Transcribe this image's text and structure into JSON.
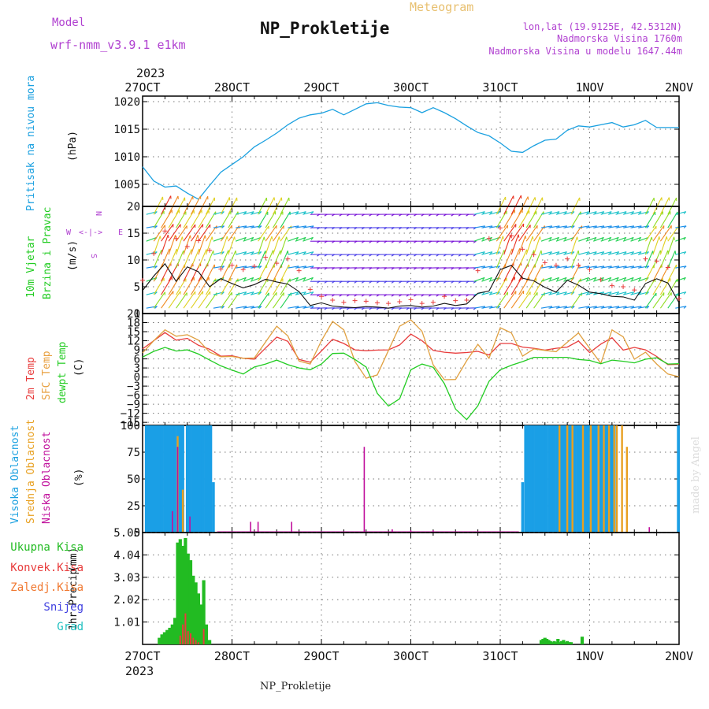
{
  "header": {
    "model_label": "Model",
    "model_value": "wrf-nmm_v3.9.1  e1km",
    "title": "NP_Prokletije",
    "subtitle": "Meteogram",
    "location": "lon,lat (19.9125E, 42.5312N)",
    "elevation": "Nadmorska Visina 1760m",
    "model_elevation": "Nadmorska Visina u modelu 1647.44m",
    "year_top": "2023",
    "year_bottom": "2023",
    "footer": "NP_Prokletije",
    "credit": "made by Angel"
  },
  "colors": {
    "pressure": "#1aa0e0",
    "temp2m": "#e83c3c",
    "sfc": "#e0a040",
    "dewpt": "#22cc22",
    "high_cloud": "#1a9fe6",
    "mid_cloud": "#e8a020",
    "low_cloud": "#c0109c",
    "precip_total": "#22bb22",
    "precip_conv": "#e83c3c",
    "precip_frz": "#f07830",
    "precip_snow": "#4040e0",
    "precip_hail": "#20c0c0",
    "purple": "#b040d0"
  },
  "time_axis": {
    "labels": [
      "27OCT",
      "28OCT",
      "29OCT",
      "30OCT",
      "31OCT",
      "1NOV",
      "2NOV"
    ]
  },
  "chart_data": [
    {
      "type": "line",
      "ylabel": "Pritisak na nivou mora",
      "unit": "(hPa)",
      "ylim": [
        1001,
        1021
      ],
      "yticks": [
        1005,
        1010,
        1015,
        1020
      ],
      "grid": true,
      "x_hours": [
        0,
        3,
        6,
        9,
        12,
        15,
        18,
        21,
        24,
        27,
        30,
        33,
        36,
        39,
        42,
        45,
        48,
        51,
        54,
        57,
        60,
        63,
        66,
        69,
        72,
        75,
        78,
        81,
        84,
        87,
        90,
        93,
        96,
        99,
        102,
        105,
        108,
        111,
        114,
        117,
        120,
        123,
        126,
        129,
        132,
        135,
        138,
        141,
        144
      ],
      "series": [
        {
          "values": [
            1008.2,
            1005.6,
            1004.5,
            1004.7,
            1003.4,
            1002.3,
            1004.8,
            1007.2,
            1008.6,
            1010.0,
            1011.8,
            1013.0,
            1014.3,
            1015.8,
            1017.0,
            1017.6,
            1017.9,
            1018.6,
            1017.6,
            1018.6,
            1019.6,
            1019.8,
            1019.3,
            1019.0,
            1018.9,
            1018.0,
            1018.9,
            1018.0,
            1016.9,
            1015.6,
            1014.4,
            1013.8,
            1012.5,
            1011.0,
            1010.8,
            1012.0,
            1013.0,
            1013.2,
            1014.8,
            1015.6,
            1015.4,
            1015.8,
            1016.2,
            1015.4,
            1015.8,
            1016.6,
            1015.3,
            1015.3,
            1015.3
          ]
        }
      ]
    },
    {
      "type": "line",
      "ylabel": "10m Vjetar Brzina i Pravac",
      "unit": "(m/s)",
      "ylim": [
        0,
        20
      ],
      "yticks": [
        0,
        5,
        10,
        15,
        20
      ],
      "grid": true,
      "compass": {
        "n": "N",
        "s": "S",
        "e": "E",
        "w": "W"
      },
      "x_hours": [
        0,
        3,
        6,
        9,
        12,
        15,
        18,
        21,
        24,
        27,
        30,
        33,
        36,
        39,
        42,
        45,
        48,
        51,
        54,
        57,
        60,
        63,
        66,
        69,
        72,
        75,
        78,
        81,
        84,
        87,
        90,
        93,
        96,
        99,
        102,
        105,
        108,
        111,
        114,
        117,
        120,
        123,
        126,
        129,
        132,
        135,
        138,
        141,
        144
      ],
      "series": [
        {
          "name": "speed",
          "values": [
            4.3,
            7.0,
            9.3,
            6.0,
            8.7,
            7.8,
            5.0,
            6.5,
            5.6,
            4.8,
            5.4,
            6.4,
            5.9,
            5.5,
            4.1,
            1.5,
            2.0,
            1.4,
            1.2,
            1.1,
            1.3,
            1.2,
            1.0,
            1.4,
            1.5,
            1.2,
            1.4,
            1.9,
            1.5,
            1.8,
            3.8,
            4.2,
            8.2,
            9.0,
            6.6,
            6.1,
            4.9,
            4.0,
            6.2,
            5.3,
            4.0,
            3.7,
            3.2,
            3.1,
            2.5,
            5.6,
            6.5,
            5.7,
            2.0
          ]
        },
        {
          "name": "gust",
          "values": [
            6.2,
            11.2,
            15.4,
            14.0,
            12.5,
            13.6,
            11.8,
            8.3,
            9.0,
            8.2,
            8.8,
            10.5,
            9.4,
            10.2,
            8.0,
            4.5,
            3.2,
            2.5,
            2.1,
            2.4,
            2.3,
            2.0,
            1.9,
            2.2,
            2.6,
            1.9,
            2.1,
            3.2,
            2.4,
            2.5,
            8.0,
            14.0,
            16.0,
            14.5,
            12.0,
            11.0,
            9.5,
            9.0,
            10.2,
            9.0,
            8.2,
            6.3,
            5.2,
            5.0,
            4.4,
            10.2,
            9.8,
            8.6,
            2.8
          ]
        }
      ]
    },
    {
      "type": "line",
      "ylabel": "2m Temp / SFC Temp / dewpt Temp",
      "series_labels": [
        "2m Temp",
        "SFC Temp",
        "dewpt Temp"
      ],
      "unit": "(C)",
      "ylim": [
        -16,
        21
      ],
      "yticks": [
        -15,
        -12,
        -9,
        -6,
        -3,
        0,
        3,
        6,
        9,
        12,
        15,
        18,
        21
      ],
      "grid": true,
      "x_hours": [
        0,
        3,
        6,
        9,
        12,
        15,
        18,
        21,
        24,
        27,
        30,
        33,
        36,
        39,
        42,
        45,
        48,
        51,
        54,
        57,
        60,
        63,
        66,
        69,
        72,
        75,
        78,
        81,
        84,
        87,
        90,
        93,
        96,
        99,
        102,
        105,
        108,
        111,
        114,
        117,
        120,
        123,
        126,
        129,
        132,
        135,
        138,
        141,
        144
      ],
      "series": [
        {
          "name": "2m Temp",
          "values": [
            9.3,
            12.0,
            14.7,
            12.2,
            12.8,
            10.5,
            9.2,
            6.9,
            7.0,
            6.2,
            5.9,
            9.6,
            13.2,
            11.8,
            5.8,
            4.9,
            8.6,
            12.5,
            11.1,
            9.0,
            8.7,
            8.9,
            9.0,
            10.6,
            14.2,
            12.0,
            8.8,
            8.2,
            7.9,
            8.1,
            8.5,
            7.3,
            11.1,
            11.1,
            9.9,
            9.5,
            8.9,
            9.5,
            9.9,
            11.9,
            8.1,
            10.9,
            13.0,
            8.9,
            9.8,
            9.0,
            6.8,
            4.1,
            4.2
          ]
        },
        {
          "name": "SFC Temp",
          "values": [
            8.0,
            12.0,
            15.6,
            13.5,
            14.0,
            12.2,
            8.2,
            6.7,
            6.8,
            6.2,
            6.3,
            11.6,
            16.8,
            13.6,
            5.3,
            4.3,
            12.0,
            18.4,
            15.6,
            5.1,
            -0.4,
            0.7,
            8.8,
            16.8,
            18.9,
            15.1,
            4.0,
            -0.9,
            -0.8,
            5.4,
            10.8,
            6.2,
            16.3,
            14.6,
            6.9,
            9.3,
            8.8,
            8.4,
            11.5,
            14.6,
            9.5,
            4.5,
            15.6,
            13.3,
            5.9,
            8.2,
            4.3,
            1.0,
            0.1
          ]
        },
        {
          "name": "dewpt Temp",
          "values": [
            6.6,
            8.5,
            9.8,
            8.6,
            9.0,
            7.6,
            5.6,
            3.7,
            2.3,
            1.0,
            3.3,
            4.3,
            5.6,
            4.1,
            3.0,
            2.4,
            4.3,
            7.8,
            7.9,
            5.8,
            3.3,
            -5.4,
            -9.6,
            -7.2,
            2.4,
            4.3,
            3.2,
            -2.2,
            -10.6,
            -14.1,
            -9.5,
            -1.4,
            2.4,
            3.9,
            5.1,
            6.5,
            6.5,
            6.5,
            6.5,
            5.8,
            5.5,
            4.4,
            5.6,
            5.2,
            4.7,
            5.9,
            6.4,
            4.3,
            4.4
          ]
        }
      ]
    },
    {
      "type": "bar",
      "ylabel": "Visoka Oblacnost / Srednja Oblacnost / Niska Oblacnost",
      "series_labels": [
        "Visoka Oblacnost",
        "Srednja Oblacnost",
        "Niska Oblacnost"
      ],
      "unit": "(%)",
      "ylim": [
        0,
        100
      ],
      "yticks": [
        0,
        25,
        50,
        75,
        100
      ],
      "grid": true,
      "x_hours": [
        1,
        1.7,
        2.4,
        3.1,
        3.8,
        4.5,
        5.2,
        5.9,
        6.6,
        7.3,
        8,
        8.7,
        9.4,
        10.1,
        10.8,
        12,
        12.7,
        13.4,
        14.1,
        14.8,
        15.5,
        16.2,
        16.9,
        17.6,
        18.3,
        19,
        20.5,
        22,
        23.5,
        25,
        29,
        31,
        40,
        41,
        52,
        59.5,
        60,
        67,
        72,
        78,
        102,
        102.8,
        103.5,
        104.2,
        104.9,
        105.6,
        106.3,
        107,
        107.7,
        108.4,
        109.1,
        109.8,
        110.5,
        111.2,
        111.9,
        112.6,
        113.3,
        114,
        114.7,
        115.4,
        116.1,
        116.8,
        117.5,
        118.2,
        118.9,
        119.6,
        120.3,
        121,
        121.7,
        122.4,
        123.1,
        123.8,
        124.5,
        125.2,
        125.9,
        126.6,
        127.3,
        128,
        128.7,
        129.4,
        130,
        136,
        143.8
      ],
      "series": [
        {
          "name": "Visoka Oblacnost",
          "values": [
            100,
            100,
            100,
            100,
            100,
            100,
            100,
            100,
            100,
            100,
            100,
            100,
            100,
            100,
            100,
            100,
            100,
            100,
            100,
            100,
            100,
            100,
            100,
            100,
            100,
            47,
            0,
            0,
            0,
            0,
            0,
            0,
            0,
            0,
            0,
            0,
            0,
            0,
            0,
            0,
            47,
            100,
            100,
            100,
            100,
            100,
            100,
            100,
            100,
            100,
            100,
            100,
            100,
            100,
            100,
            100,
            100,
            100,
            100,
            100,
            100,
            100,
            100,
            100,
            100,
            100,
            100,
            100,
            100,
            100,
            100,
            100,
            100,
            100,
            100,
            100,
            0,
            0,
            0,
            0,
            0,
            0,
            100
          ]
        },
        {
          "name": "Srednja Oblacnost",
          "values": [
            0,
            0,
            0,
            0,
            0,
            0,
            0,
            0,
            0,
            0,
            0,
            0,
            90,
            0,
            40,
            0,
            0,
            0,
            0,
            0,
            0,
            0,
            0,
            0,
            0,
            0,
            0,
            0,
            0,
            0,
            0,
            0,
            0,
            0,
            0,
            0,
            0,
            0,
            0,
            0,
            0,
            0,
            0,
            0,
            0,
            0,
            0,
            0,
            0,
            0,
            0,
            0,
            0,
            0,
            100,
            0,
            0,
            100,
            0,
            100,
            0,
            0,
            0,
            100,
            0,
            0,
            100,
            0,
            0,
            100,
            0,
            100,
            0,
            100,
            0,
            100,
            100,
            0,
            100,
            0,
            80,
            0,
            0
          ]
        },
        {
          "name": "Niska Oblacnost",
          "values": [
            0,
            0,
            0,
            0,
            0,
            0,
            0,
            0,
            0,
            0,
            20,
            0,
            80,
            0,
            0,
            0,
            15,
            0,
            0,
            0,
            0,
            0,
            0,
            0,
            0,
            0,
            0,
            0,
            0,
            0,
            10,
            10,
            10,
            0,
            1,
            80,
            0,
            3,
            2,
            2,
            0,
            0,
            0,
            0,
            0,
            0,
            0,
            0,
            0,
            0,
            0,
            0,
            0,
            0,
            0,
            0,
            0,
            0,
            0,
            0,
            0,
            0,
            0,
            0,
            0,
            0,
            0,
            0,
            0,
            0,
            0,
            0,
            0,
            0,
            0,
            0,
            0,
            0,
            0,
            0,
            0,
            5,
            0
          ]
        }
      ]
    },
    {
      "type": "bar",
      "ylabel": "1hr Precip",
      "unit": "(mm)",
      "ylim": [
        0,
        5.05
      ],
      "yticks": [
        1.01,
        2.02,
        3.03,
        4.04,
        5.05
      ],
      "grid": true,
      "legend": [
        "Ukupna Kisa",
        "Konvek.Kisa",
        "Zaledj.Kisa",
        "Snijeg",
        "Grad"
      ],
      "x_hours": [
        4.5,
        5.2,
        5.9,
        6.6,
        7.3,
        8,
        8.7,
        9.4,
        10.1,
        10.8,
        11.5,
        12.2,
        12.9,
        13.6,
        14.3,
        15,
        15.7,
        16.4,
        17.1,
        18,
        107,
        107.5,
        108,
        108.5,
        109,
        109.5,
        110,
        110.5,
        111,
        111.5,
        112,
        112.5,
        113,
        113.5,
        114,
        114.5,
        115,
        118
      ],
      "series": [
        {
          "name": "Ukupna Kisa",
          "values": [
            0.3,
            0.45,
            0.55,
            0.65,
            0.75,
            0.9,
            1.2,
            4.6,
            4.75,
            4.45,
            4.8,
            4.1,
            3.8,
            3.1,
            2.8,
            2.3,
            1.8,
            2.9,
            0.9,
            0.2,
            0.2,
            0.25,
            0.3,
            0.25,
            0.2,
            0.15,
            0.1,
            0.15,
            0.1,
            0.25,
            0.1,
            0.15,
            0.2,
            0.1,
            0.15,
            0.1,
            0.1,
            0.35
          ]
        },
        {
          "name": "Konvek.Kisa",
          "values": [
            0,
            0,
            0,
            0,
            0,
            0,
            0,
            0,
            0.4,
            0.9,
            1.4,
            0.6,
            0.5,
            0.3,
            0.2,
            0.1,
            0,
            0.7,
            0,
            0,
            0,
            0,
            0,
            0,
            0,
            0,
            0,
            0,
            0,
            0,
            0,
            0,
            0,
            0,
            0,
            0,
            0,
            0
          ]
        }
      ]
    }
  ]
}
